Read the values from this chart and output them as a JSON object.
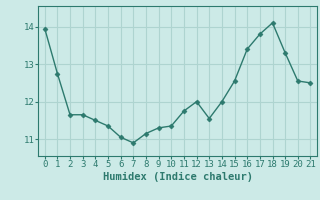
{
  "x": [
    0,
    1,
    2,
    3,
    4,
    5,
    6,
    7,
    8,
    9,
    10,
    11,
    12,
    13,
    14,
    15,
    16,
    17,
    18,
    19,
    20,
    21
  ],
  "y": [
    13.95,
    12.75,
    11.65,
    11.65,
    11.5,
    11.35,
    11.05,
    10.9,
    11.15,
    11.3,
    11.35,
    11.75,
    12.0,
    11.55,
    12.0,
    12.55,
    13.4,
    13.8,
    14.1,
    13.3,
    12.55,
    12.5
  ],
  "line_color": "#2d7a6e",
  "marker": "D",
  "marker_size": 2.5,
  "line_width": 1.0,
  "bg_color": "#cceae7",
  "grid_color": "#aed4d0",
  "xlabel": "Humidex (Indice chaleur)",
  "xlabel_fontsize": 7.5,
  "tick_fontsize": 6.5,
  "yticks": [
    11,
    12,
    13,
    14
  ],
  "ylim": [
    10.55,
    14.55
  ],
  "xlim": [
    -0.5,
    21.5
  ]
}
